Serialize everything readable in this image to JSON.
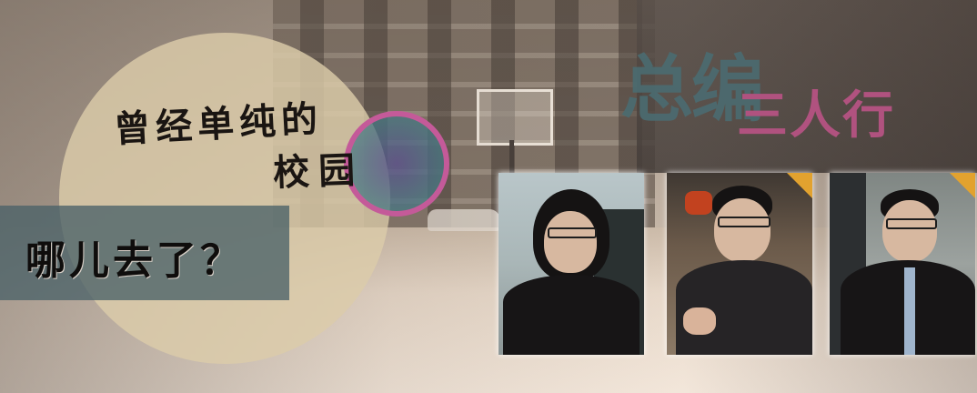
{
  "headline": {
    "line1": "曾经单纯的",
    "line2": "校园",
    "line3": "哪儿去了？"
  },
  "title": {
    "main": "总编",
    "sub": "三人行"
  },
  "colors": {
    "title_main": "#4b6b70",
    "title_sub": "#b0527f",
    "bar": "#4a6268",
    "circle": "#dccca9",
    "ring": "#c45a99"
  },
  "photos": [
    {
      "name": "portrait-long-hair-glasses"
    },
    {
      "name": "portrait-short-hair-glasses-gesturing"
    },
    {
      "name": "portrait-short-hair-glasses-tie"
    }
  ]
}
